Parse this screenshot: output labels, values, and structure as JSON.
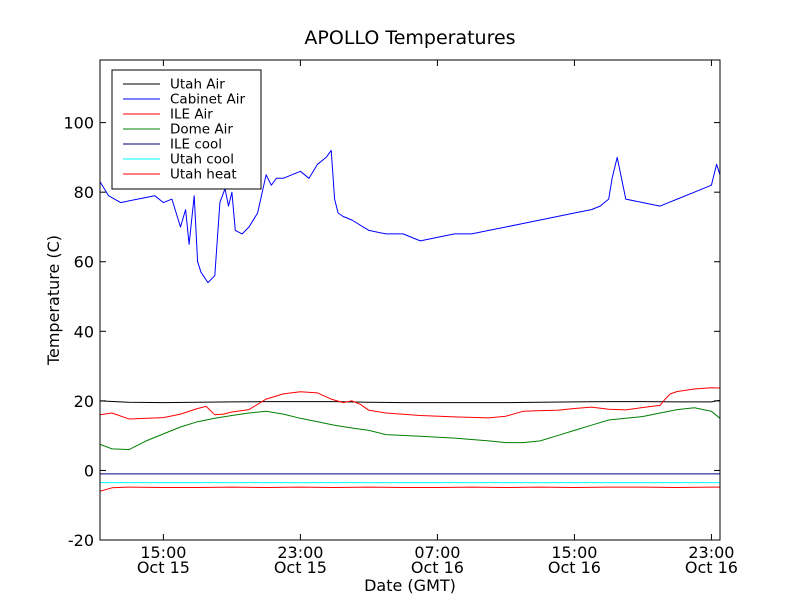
{
  "chart_data": {
    "type": "line",
    "title": "APOLLO Temperatures",
    "xlabel": "Date (GMT)",
    "ylabel": "Temperature (C)",
    "x_unit": "hours since Oct 15 00:00 GMT",
    "xlim": [
      11.3,
      47.5
    ],
    "ylim": [
      -20,
      118
    ],
    "yticks": [
      -20,
      0,
      20,
      40,
      60,
      80,
      100
    ],
    "xticks": [
      {
        "x": 15,
        "time": "15:00",
        "date": "Oct 15"
      },
      {
        "x": 23,
        "time": "23:00",
        "date": "Oct 15"
      },
      {
        "x": 31,
        "time": "07:00",
        "date": "Oct 16"
      },
      {
        "x": 39,
        "time": "15:00",
        "date": "Oct 16"
      },
      {
        "x": 47,
        "time": "23:00",
        "date": "Oct 16"
      }
    ],
    "legend_position": "top-left",
    "series": [
      {
        "name": "Utah Air",
        "color": "#000000",
        "x": [
          11.3,
          13,
          15,
          17,
          19,
          21,
          23,
          25,
          27,
          29,
          31,
          33,
          35,
          37,
          39,
          41,
          43,
          45,
          47,
          47.5
        ],
        "y": [
          20,
          19.6,
          19.5,
          19.6,
          19.7,
          19.8,
          19.8,
          19.8,
          19.6,
          19.5,
          19.5,
          19.5,
          19.5,
          19.6,
          19.7,
          19.8,
          19.8,
          19.7,
          19.7,
          20.2
        ]
      },
      {
        "name": "Cabinet Air",
        "color": "#0000ff",
        "x": [
          11.3,
          11.8,
          12.5,
          13.5,
          14.5,
          15,
          15.5,
          16,
          16.3,
          16.5,
          16.8,
          17,
          17.2,
          17.6,
          18,
          18.3,
          18.6,
          18.8,
          19,
          19.2,
          19.6,
          20,
          20.5,
          21,
          21.3,
          21.6,
          22,
          22.5,
          23,
          23.5,
          24,
          24.5,
          24.8,
          25,
          25.2,
          25.5,
          26,
          27,
          28,
          29,
          30,
          31,
          32,
          33,
          34,
          35,
          36,
          37,
          38,
          39,
          40,
          40.5,
          41,
          41.2,
          41.5,
          42,
          43,
          44,
          44.5,
          45,
          46,
          47,
          47.3,
          47.5
        ],
        "y": [
          83,
          79,
          77,
          78,
          79,
          77,
          78,
          70,
          75,
          65,
          79,
          60,
          57,
          54,
          56,
          77,
          81,
          76,
          80,
          69,
          68,
          70,
          74,
          85,
          82,
          84,
          84,
          85,
          86,
          84,
          88,
          90,
          92,
          78,
          74,
          73,
          72,
          69,
          68,
          68,
          66,
          67,
          68,
          68,
          69,
          70,
          71,
          72,
          73,
          74,
          75,
          76,
          78,
          84,
          90,
          78,
          77,
          76,
          77,
          78,
          80,
          82,
          88,
          85
        ]
      },
      {
        "name": "ILE Air",
        "color": "#ff0000",
        "x": [
          11.3,
          12,
          13,
          15,
          16,
          17,
          17.5,
          18,
          18.5,
          19,
          20,
          21,
          22,
          23,
          24,
          24.8,
          25.5,
          26,
          26.5,
          27,
          28,
          30,
          32,
          34,
          35,
          36,
          37,
          38,
          39,
          40,
          41,
          42,
          43,
          44,
          44.3,
          44.6,
          45,
          46,
          47,
          47.5
        ],
        "y": [
          16,
          16.5,
          14.8,
          15.2,
          16.2,
          17.8,
          18.4,
          16,
          16.2,
          16.8,
          17.5,
          20.5,
          22,
          22.6,
          22.3,
          20.5,
          19.5,
          20,
          19,
          17.3,
          16.5,
          15.8,
          15.4,
          15.1,
          15.6,
          17,
          17.2,
          17.3,
          17.8,
          18.2,
          17.6,
          17.4,
          18.1,
          18.7,
          20.5,
          22,
          22.7,
          23.4,
          23.8,
          23.7
        ]
      },
      {
        "name": "Dome Air",
        "color": "#008000",
        "x": [
          11.3,
          12,
          13,
          14,
          15,
          16,
          17,
          18,
          19,
          20,
          21,
          22,
          23,
          24,
          25,
          26,
          27,
          28,
          30,
          32,
          34,
          35,
          36,
          37,
          38,
          39,
          40,
          41,
          42,
          43,
          44,
          45,
          46,
          47,
          47.5
        ],
        "y": [
          7.5,
          6.2,
          6,
          8.5,
          10.5,
          12.5,
          14,
          15,
          15.8,
          16.5,
          17,
          16.2,
          15,
          14,
          13,
          12.2,
          11.5,
          10.3,
          9.8,
          9.3,
          8.5,
          8,
          8,
          8.5,
          10,
          11.5,
          13,
          14.5,
          15,
          15.5,
          16.5,
          17.5,
          18,
          17,
          15
        ]
      },
      {
        "name": "ILE cool",
        "color": "#000080",
        "x": [
          11.3,
          47.5
        ],
        "y": [
          -1,
          -1
        ]
      },
      {
        "name": "Utah cool",
        "color": "#00ffff",
        "x": [
          11.3,
          47.5
        ],
        "y": [
          -3.5,
          -3.5
        ]
      },
      {
        "name": "Utah heat",
        "color": "#ff0000",
        "x": [
          11.3,
          12,
          13,
          15,
          17,
          19,
          21,
          23,
          25,
          27,
          29,
          31,
          33,
          35,
          37,
          39,
          41,
          43,
          45,
          47,
          47.5
        ],
        "y": [
          -6,
          -5,
          -4.8,
          -4.9,
          -4.9,
          -4.8,
          -4.9,
          -4.8,
          -4.9,
          -4.8,
          -4.9,
          -4.9,
          -4.8,
          -4.9,
          -4.8,
          -4.9,
          -4.8,
          -4.8,
          -4.9,
          -4.8,
          -4.8
        ]
      }
    ]
  }
}
